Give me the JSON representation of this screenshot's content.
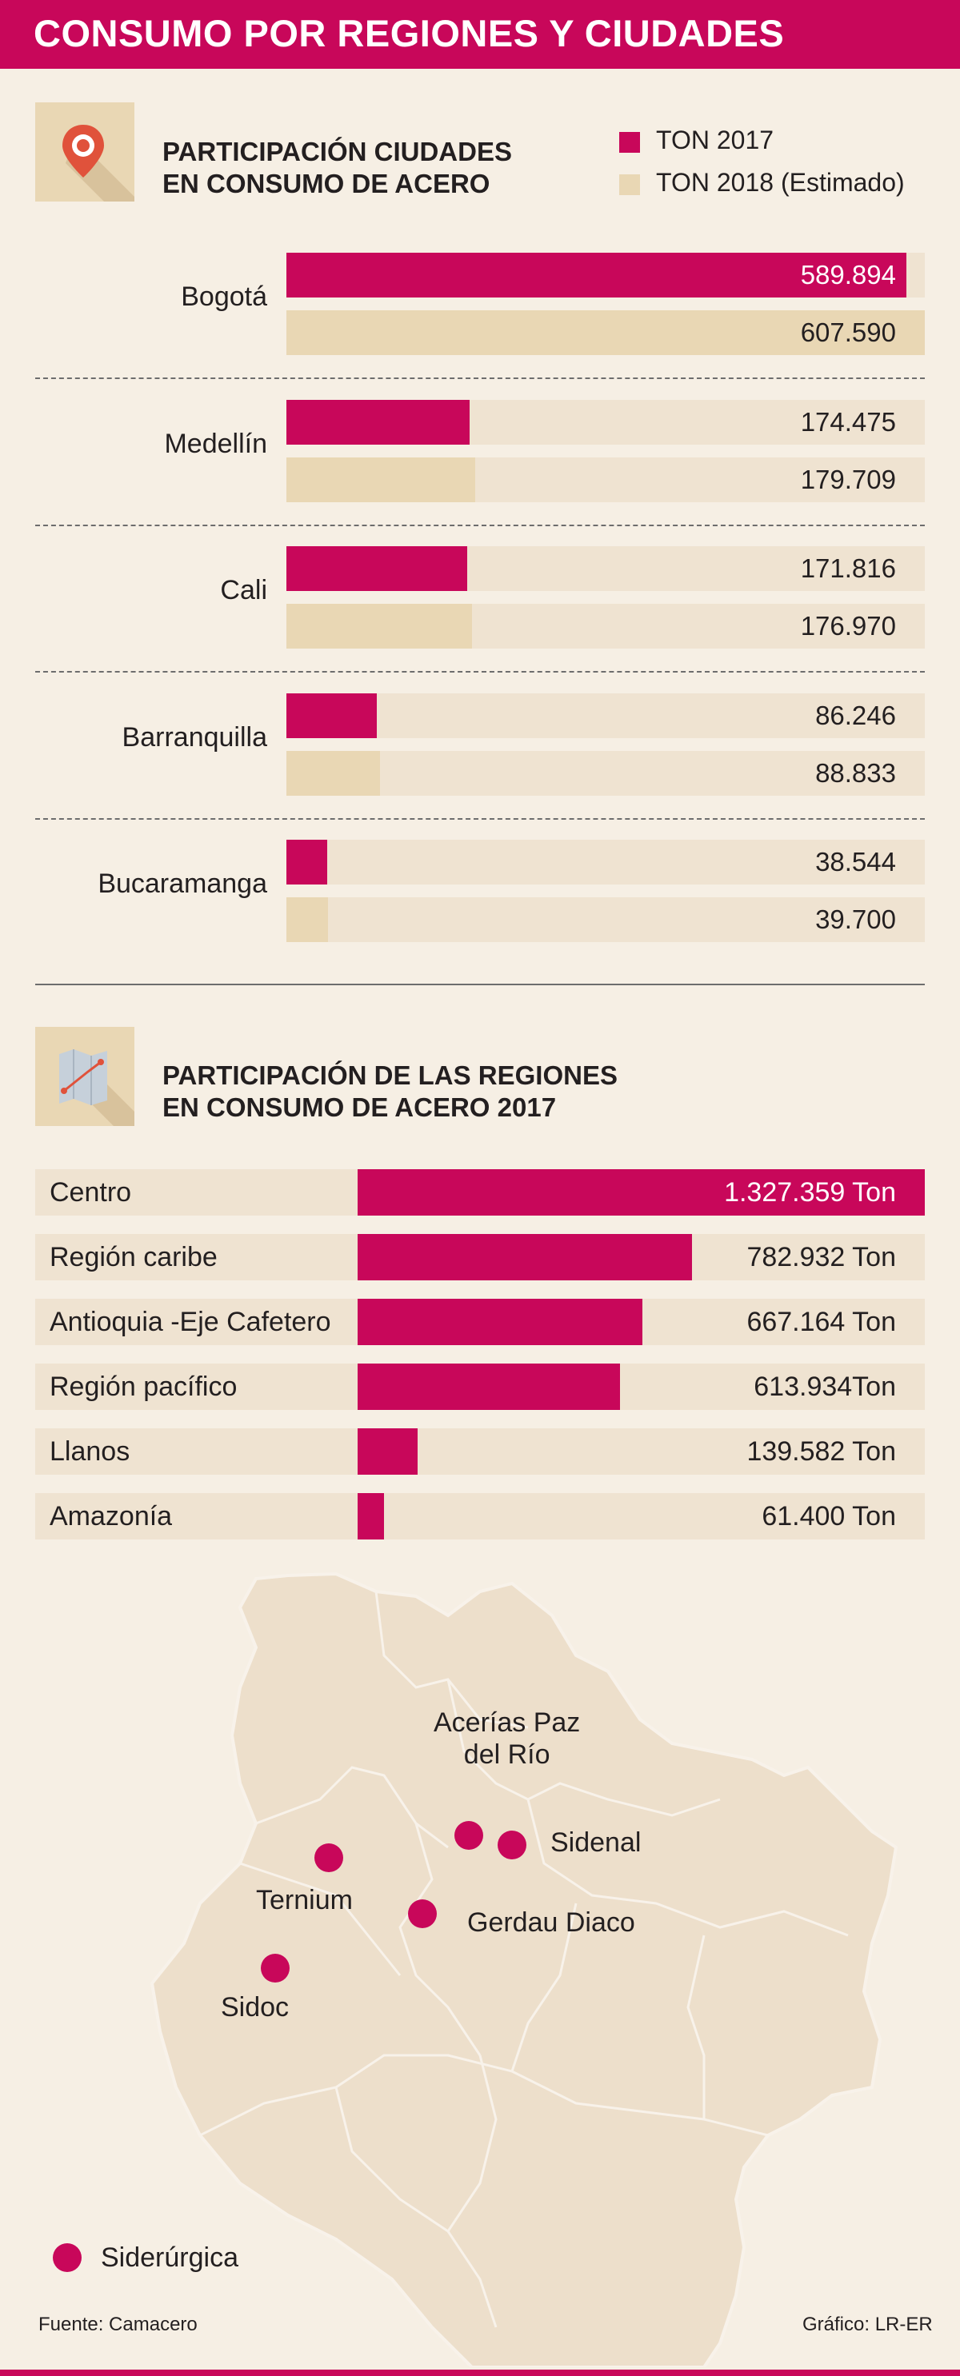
{
  "header": {
    "title": "CONSUMO POR REGIONES Y CIUDADES"
  },
  "colors": {
    "accent": "#c8075a",
    "estimate": "#e9d7b4",
    "track": "#efe3d1",
    "background": "#f6efe4",
    "map_fill": "#eddfcb"
  },
  "section1": {
    "title_line1": "PARTICIPACIÓN CIUDADES",
    "title_line2": "EN CONSUMO DE ACERO",
    "icon": "map-pin-icon"
  },
  "legend": {
    "series1": "TON 2017",
    "series2": "TON 2018 (Estimado)"
  },
  "section2": {
    "title_line1": "PARTICIPACIÓN DE LAS REGIONES",
    "title_line2": "EN CONSUMO DE ACERO 2017",
    "icon": "folded-map-icon"
  },
  "chart_data": [
    {
      "type": "bar",
      "orientation": "horizontal",
      "categories": [
        "Bogotá",
        "Medellín",
        "Cali",
        "Barranquilla",
        "Bucaramanga"
      ],
      "series": [
        {
          "name": "TON 2017",
          "values": [
            589894,
            174475,
            171816,
            86246,
            38544
          ],
          "labels": [
            "589.894",
            "174.475",
            "171.816",
            "86.246",
            "38.544"
          ]
        },
        {
          "name": "TON 2018 (Estimado)",
          "values": [
            607590,
            179709,
            176970,
            88833,
            39700
          ],
          "labels": [
            "607.590",
            "179.709",
            "176.970",
            "88.833",
            "39.700"
          ]
        }
      ],
      "xlim": [
        0,
        607590
      ]
    },
    {
      "type": "bar",
      "orientation": "horizontal",
      "categories": [
        "Centro",
        "Región caribe",
        "Antioquia -Eje Cafetero",
        "Región pacífico",
        "Llanos",
        "Amazonía"
      ],
      "values": [
        1327359,
        782932,
        667164,
        613934,
        139582,
        61400
      ],
      "labels": [
        "1.327.359 Ton",
        "782.932 Ton",
        "667.164 Ton",
        "613.934Ton",
        "139.582 Ton",
        "61.400 Ton"
      ],
      "xlim": [
        0,
        1327359
      ]
    }
  ],
  "map": {
    "plants": [
      {
        "name_line1": "Acerías Paz",
        "name_line2": "del Río"
      },
      {
        "name_line1": "Sidenal"
      },
      {
        "name_line1": "Gerdau Diaco"
      },
      {
        "name_line1": "Ternium"
      },
      {
        "name_line1": "Sidoc"
      }
    ],
    "legend_label": "Siderúrgica"
  },
  "footer": {
    "source": "Fuente: Camacero",
    "credit": "Gráfico: LR-ER"
  }
}
